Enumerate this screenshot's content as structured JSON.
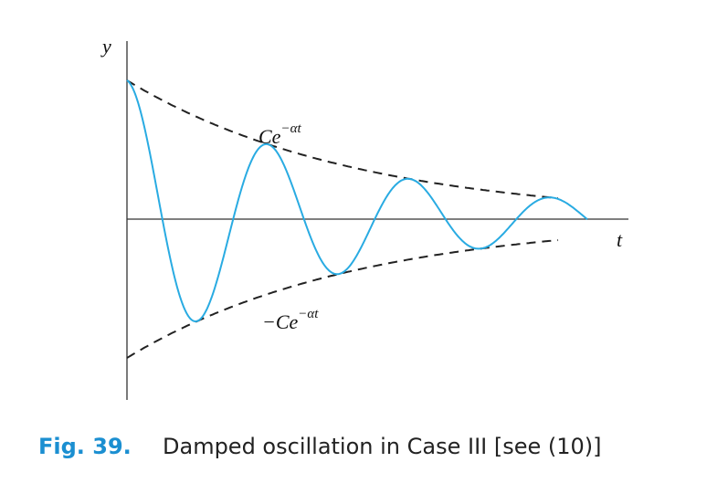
{
  "figure": {
    "y_axis_label": "y",
    "t_axis_label": "t",
    "upper_label": {
      "base": "Ce",
      "exponent": "−αt"
    },
    "lower_label": {
      "base": "−Ce",
      "exponent": "−αt"
    }
  },
  "caption": {
    "number": "Fig. 39.",
    "text": "Damped oscillation in Case III [see (10)]"
  }
}
